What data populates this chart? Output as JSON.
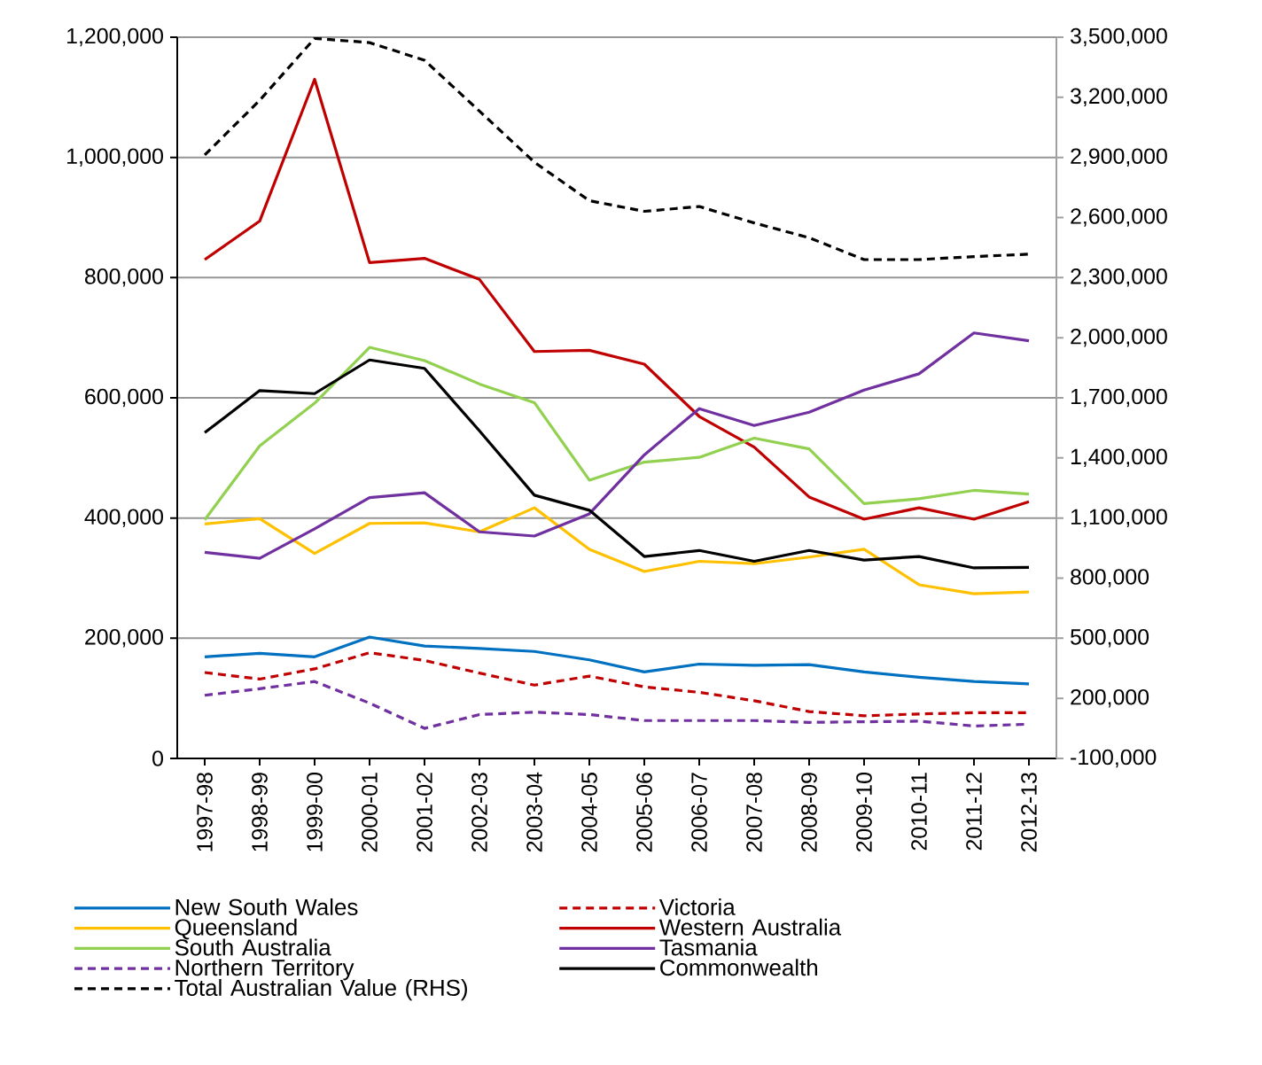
{
  "chart_data": {
    "type": "line",
    "categories": [
      "1997-98",
      "1998-99",
      "1999-00",
      "2000-01",
      "2001-02",
      "2002-03",
      "2003-04",
      "2004-05",
      "2005-06",
      "2006-07",
      "2007-08",
      "2008-09",
      "2009-10",
      "2010-11",
      "2011-12",
      "2012-13"
    ],
    "series": [
      {
        "name": "New South Wales",
        "color": "#0070c0",
        "line_style": "solid",
        "values": [
          169000,
          175000,
          169000,
          202000,
          187000,
          183000,
          178000,
          164000,
          144000,
          157000,
          155000,
          156000,
          144000,
          135000,
          128000,
          124000
        ]
      },
      {
        "name": "Victoria",
        "color": "#c00000",
        "line_style": "dashed",
        "values": [
          143000,
          132000,
          149000,
          176000,
          163000,
          142000,
          122000,
          137000,
          119000,
          110000,
          96000,
          78000,
          71000,
          74000,
          76000,
          76000
        ]
      },
      {
        "name": "Queensland",
        "color": "#ffc000",
        "line_style": "solid",
        "values": [
          390000,
          399000,
          341000,
          391000,
          392000,
          377000,
          417000,
          348000,
          311000,
          328000,
          324000,
          335000,
          348000,
          289000,
          274000,
          277000
        ]
      },
      {
        "name": "Western Australia",
        "color": "#c00000",
        "line_style": "solid",
        "values": [
          830000,
          894000,
          1130000,
          825000,
          832000,
          797000,
          677000,
          679000,
          656000,
          569000,
          518000,
          435000,
          398000,
          417000,
          398000,
          427000
        ]
      },
      {
        "name": "South Australia",
        "color": "#92d050",
        "line_style": "solid",
        "values": [
          397000,
          520000,
          591000,
          684000,
          662000,
          623000,
          592000,
          463000,
          493000,
          501000,
          533000,
          515000,
          424000,
          432000,
          446000,
          440000
        ]
      },
      {
        "name": "Tasmania",
        "color": "#7030a0",
        "line_style": "solid",
        "values": [
          343000,
          333000,
          382000,
          434000,
          442000,
          377000,
          370000,
          407000,
          505000,
          582000,
          554000,
          576000,
          613000,
          640000,
          708000,
          695000
        ]
      },
      {
        "name": "Northern Territory",
        "color": "#7030a0",
        "line_style": "dashed",
        "values": [
          105000,
          116000,
          128000,
          92000,
          50000,
          73000,
          77000,
          73000,
          63000,
          63000,
          63000,
          60000,
          61000,
          62000,
          54000,
          57000
        ]
      },
      {
        "name": "Commonwealth",
        "color": "#000000",
        "line_style": "solid",
        "values": [
          542000,
          612000,
          607000,
          663000,
          649000,
          545000,
          438000,
          413000,
          336000,
          346000,
          328000,
          346000,
          330000,
          336000,
          317000,
          318000
        ]
      },
      {
        "name": "Total Australian Value (RHS)",
        "color": "#000000",
        "line_style": "dashed",
        "axis": "y2",
        "values": [
          2912000,
          3185000,
          3494000,
          3473000,
          3385000,
          3131000,
          2876000,
          2684000,
          2631000,
          2655000,
          2573000,
          2499000,
          2390000,
          2390000,
          2405000,
          2417000
        ]
      }
    ],
    "ylim": [
      0,
      1200000
    ],
    "yticks": [
      {
        "value": 0,
        "label": "0"
      },
      {
        "value": 200000,
        "label": "200,000"
      },
      {
        "value": 400000,
        "label": "400,000"
      },
      {
        "value": 600000,
        "label": "600,000"
      },
      {
        "value": 800000,
        "label": "800,000"
      },
      {
        "value": 1000000,
        "label": "1,000,000"
      },
      {
        "value": 1200000,
        "label": "1,200,000"
      }
    ],
    "y2lim": [
      -100000,
      3500000
    ],
    "y2ticks": [
      {
        "value": -100000,
        "label": "-100,000"
      },
      {
        "value": 200000,
        "label": "200,000"
      },
      {
        "value": 500000,
        "label": "500,000"
      },
      {
        "value": 800000,
        "label": "800,000"
      },
      {
        "value": 1100000,
        "label": "1,100,000"
      },
      {
        "value": 1400000,
        "label": "1,400,000"
      },
      {
        "value": 1700000,
        "label": "1,700,000"
      },
      {
        "value": 2000000,
        "label": "2,000,000"
      },
      {
        "value": 2300000,
        "label": "2,300,000"
      },
      {
        "value": 2600000,
        "label": "2,600,000"
      },
      {
        "value": 2900000,
        "label": "2,900,000"
      },
      {
        "value": 3200000,
        "label": "3,200,000"
      },
      {
        "value": 3500000,
        "label": "3,500,000"
      }
    ],
    "grid": "y",
    "legend": "bottom"
  }
}
